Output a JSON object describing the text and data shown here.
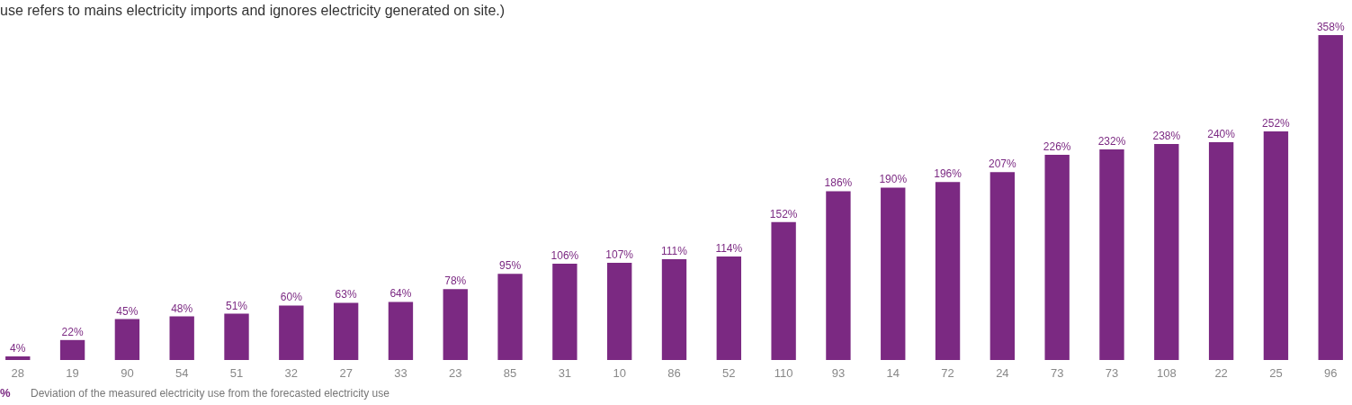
{
  "chart_data": {
    "type": "bar",
    "title": "use refers to mains electricity imports and ignores electricity generated on site.)",
    "categories": [
      "28",
      "19",
      "90",
      "54",
      "51",
      "32",
      "27",
      "33",
      "23",
      "85",
      "31",
      "10",
      "86",
      "52",
      "110",
      "93",
      "14",
      "72",
      "24",
      "73",
      "73",
      "108",
      "22",
      "25",
      "96"
    ],
    "series": [
      {
        "name": "Deviation of the measured electricity use from the forecasted electricity use",
        "color": "#7b2982",
        "values": [
          4,
          22,
          45,
          48,
          51,
          60,
          63,
          64,
          78,
          95,
          106,
          107,
          111,
          114,
          152,
          186,
          190,
          196,
          207,
          226,
          232,
          238,
          240,
          252,
          358
        ],
        "value_labels": [
          "4%",
          "22%",
          "45%",
          "48%",
          "51%",
          "60%",
          "63%",
          "64%",
          "78%",
          "95%",
          "106%",
          "107%",
          "111%",
          "114%",
          "152%",
          "186%",
          "190%",
          "196%",
          "207%",
          "226%",
          "232%",
          "238%",
          "240%",
          "252%",
          "358%"
        ]
      }
    ],
    "legend_title": "%",
    "legend": "bottom left",
    "grid": false
  }
}
